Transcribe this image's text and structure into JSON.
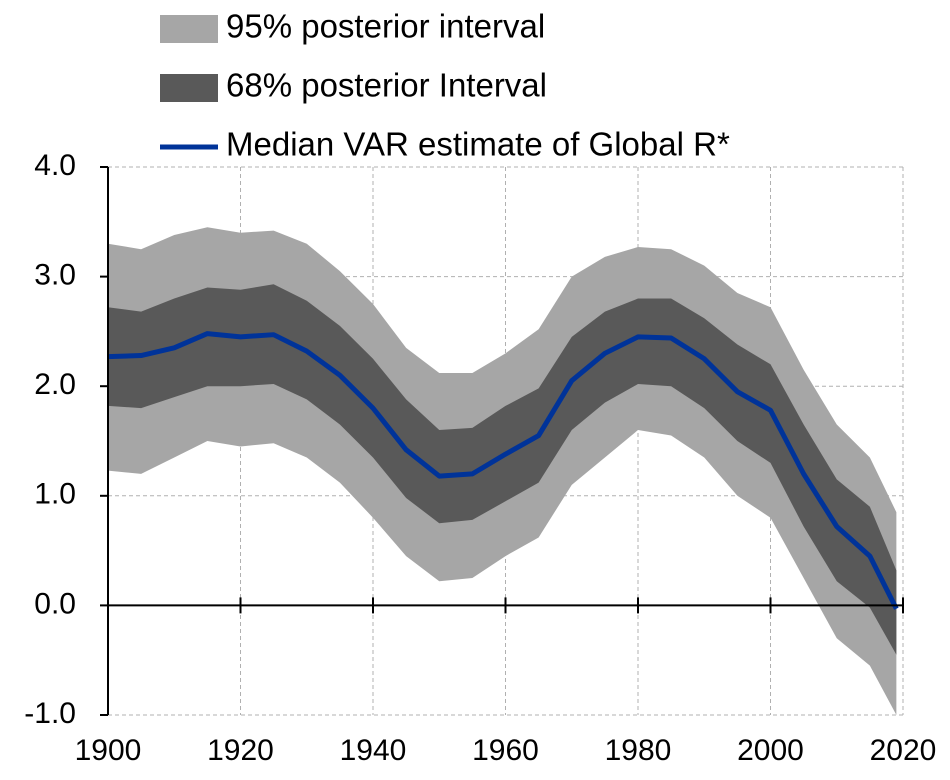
{
  "chart_data": {
    "type": "line",
    "x": [
      1900,
      1905,
      1910,
      1915,
      1920,
      1925,
      1930,
      1935,
      1940,
      1945,
      1950,
      1955,
      1960,
      1965,
      1970,
      1975,
      1980,
      1985,
      1990,
      1995,
      2000,
      2005,
      2010,
      2015,
      2019
    ],
    "series": [
      {
        "name": "95% posterior interval",
        "color": "#a6a6a6",
        "kind": "band",
        "lower": [
          1.23,
          1.2,
          1.35,
          1.5,
          1.45,
          1.48,
          1.35,
          1.12,
          0.8,
          0.45,
          0.22,
          0.25,
          0.45,
          0.62,
          1.1,
          1.35,
          1.6,
          1.55,
          1.35,
          1.0,
          0.8,
          0.25,
          -0.3,
          -0.55,
          -1.0
        ],
        "upper": [
          3.3,
          3.25,
          3.38,
          3.45,
          3.4,
          3.42,
          3.3,
          3.05,
          2.75,
          2.35,
          2.12,
          2.12,
          2.3,
          2.52,
          3.0,
          3.18,
          3.27,
          3.25,
          3.1,
          2.85,
          2.72,
          2.15,
          1.65,
          1.35,
          0.85
        ]
      },
      {
        "name": "68% posterior Interval",
        "color": "#595959",
        "kind": "band",
        "lower": [
          1.82,
          1.8,
          1.9,
          2.0,
          2.0,
          2.02,
          1.88,
          1.65,
          1.35,
          0.98,
          0.75,
          0.78,
          0.95,
          1.12,
          1.6,
          1.85,
          2.02,
          2.0,
          1.8,
          1.5,
          1.3,
          0.72,
          0.22,
          -0.02,
          -0.45
        ],
        "upper": [
          2.72,
          2.68,
          2.8,
          2.9,
          2.88,
          2.93,
          2.78,
          2.55,
          2.25,
          1.88,
          1.6,
          1.62,
          1.82,
          1.98,
          2.45,
          2.68,
          2.8,
          2.8,
          2.62,
          2.38,
          2.2,
          1.65,
          1.15,
          0.9,
          0.32
        ]
      },
      {
        "name": "Median VAR estimate of Global R*",
        "color": "#003399",
        "kind": "line",
        "values": [
          2.27,
          2.28,
          2.35,
          2.48,
          2.45,
          2.47,
          2.32,
          2.1,
          1.8,
          1.42,
          1.18,
          1.2,
          1.38,
          1.55,
          2.05,
          2.3,
          2.45,
          2.44,
          2.25,
          1.95,
          1.78,
          1.2,
          0.72,
          0.45,
          -0.03
        ]
      }
    ],
    "xlim": [
      1900,
      2020
    ],
    "ylim": [
      -1,
      4
    ],
    "xticks": [
      1900,
      1920,
      1940,
      1960,
      1980,
      2000,
      2020
    ],
    "yticks": [
      {
        "value": 4,
        "label": "4.0"
      },
      {
        "value": 3,
        "label": "3.0"
      },
      {
        "value": 2,
        "label": "2.0"
      },
      {
        "value": 1,
        "label": "1.0"
      },
      {
        "value": 0,
        "label": "0.0"
      },
      {
        "value": -1,
        "label": "-1.0"
      }
    ],
    "grid": true
  }
}
